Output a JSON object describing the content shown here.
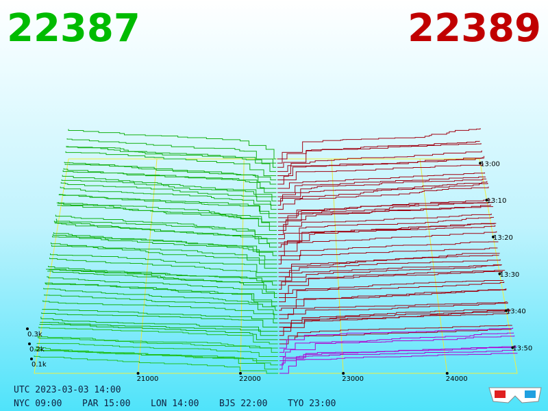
{
  "header": {
    "bid": "22387",
    "ask": "22389"
  },
  "price_axis": [
    "21000",
    "22000",
    "23000",
    "24000"
  ],
  "time_axis": [
    "13:00",
    "13:10",
    "13:20",
    "13:30",
    "13:40",
    "13:50"
  ],
  "depth_axis": [
    "0.3k",
    "0.2k",
    "0.1k"
  ],
  "footer": {
    "utc": "UTC 2023-03-03 14:00",
    "cities": [
      "NYC 09:00",
      "PAR 15:00",
      "LON 14:00",
      "BJS 22:00",
      "TYO 23:00"
    ]
  }
}
